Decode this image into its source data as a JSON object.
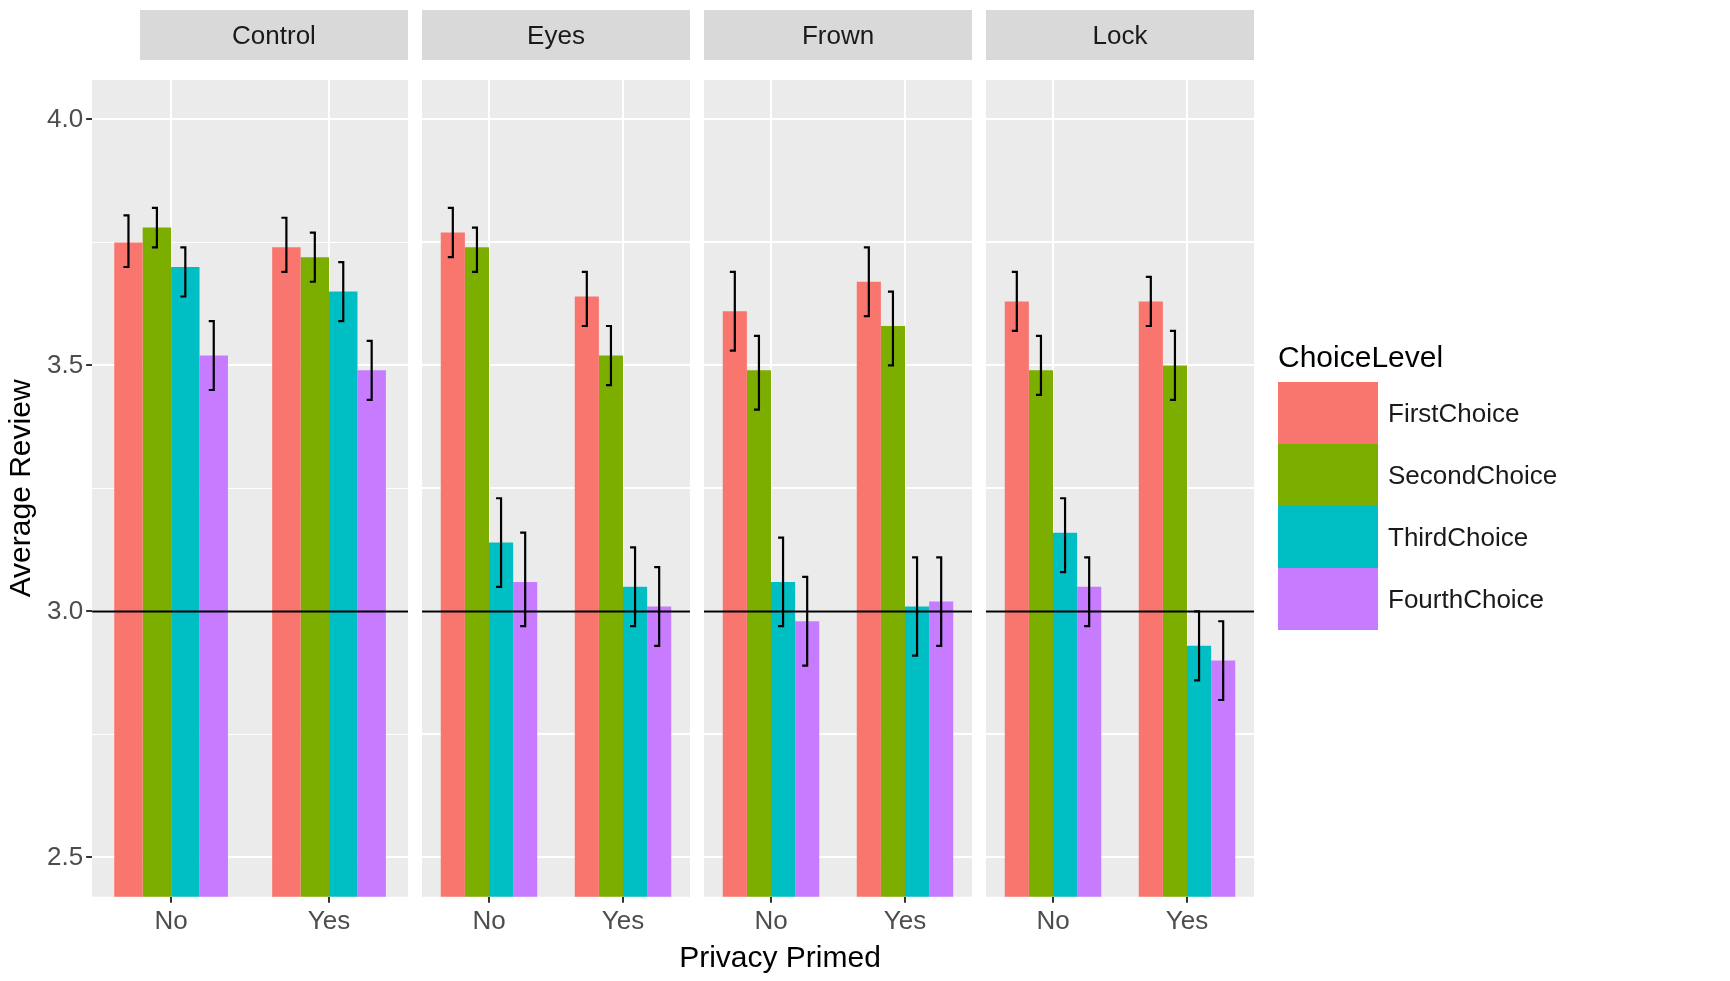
{
  "chart_data": [
    {
      "type": "bar",
      "title": "Control",
      "ylabel": "Average Review",
      "categories": [
        "No",
        "Yes"
      ],
      "ylim": [
        2.42,
        4.08
      ],
      "yticks": [
        {
          "value": 2.5,
          "label": "2.5"
        },
        {
          "value": 2.75,
          "label": null
        },
        {
          "value": 3,
          "label": "3.0"
        },
        {
          "value": 3.25,
          "label": null
        },
        {
          "value": 3.5,
          "label": "3.5"
        },
        {
          "value": 3.75,
          "label": null
        },
        {
          "value": 4,
          "label": "4.0"
        }
      ],
      "grid": true,
      "ref_lines": [
        {
          "axis": "y",
          "value": 3,
          "color": "#000000"
        }
      ],
      "series": [
        {
          "color": "#f8766d",
          "values": [
            3.75,
            3.74
          ],
          "errors": [
            [
              3.7,
              3.805
            ],
            [
              3.69,
              3.8
            ]
          ]
        },
        {
          "color": "#7cae00",
          "values": [
            3.78,
            3.72
          ],
          "errors": [
            [
              3.74,
              3.82
            ],
            [
              3.67,
              3.77
            ]
          ]
        },
        {
          "color": "#00bfc4",
          "values": [
            3.7,
            3.65
          ],
          "errors": [
            [
              3.64,
              3.74
            ],
            [
              3.59,
              3.71
            ]
          ]
        },
        {
          "color": "#c77cff",
          "values": [
            3.52,
            3.49
          ],
          "errors": [
            [
              3.45,
              3.59
            ],
            [
              3.43,
              3.55
            ]
          ]
        }
      ]
    },
    {
      "type": "bar",
      "title": "Eyes",
      "xlabel": "Privacy Primed",
      "categories": [
        "No",
        "Yes"
      ],
      "ylim": [
        2.42,
        4.08
      ],
      "yticks": [
        {
          "value": 2.5,
          "label": null
        },
        {
          "value": 2.75,
          "label": null
        },
        {
          "value": 3,
          "label": null
        },
        {
          "value": 3.25,
          "label": null
        },
        {
          "value": 3.5,
          "label": null
        },
        {
          "value": 3.75,
          "label": null
        },
        {
          "value": 4,
          "label": null
        }
      ],
      "tick_labels": "x",
      "grid": true,
      "ref_lines": [
        {
          "axis": "y",
          "value": 3,
          "color": "#000000"
        }
      ],
      "series": [
        {
          "color": "#f8766d",
          "values": [
            3.77,
            3.64
          ],
          "errors": [
            [
              3.72,
              3.82
            ],
            [
              3.58,
              3.69
            ]
          ]
        },
        {
          "color": "#7cae00",
          "values": [
            3.74,
            3.52
          ],
          "errors": [
            [
              3.69,
              3.78
            ],
            [
              3.46,
              3.58
            ]
          ]
        },
        {
          "color": "#00bfc4",
          "values": [
            3.14,
            3.05
          ],
          "errors": [
            [
              3.05,
              3.23
            ],
            [
              2.97,
              3.13
            ]
          ]
        },
        {
          "color": "#c77cff",
          "values": [
            3.06,
            3.01
          ],
          "errors": [
            [
              2.97,
              3.16
            ],
            [
              2.93,
              3.09
            ]
          ]
        }
      ]
    },
    {
      "type": "bar",
      "title": "Frown",
      "categories": [
        "No",
        "Yes"
      ],
      "ylim": [
        2.42,
        4.08
      ],
      "yticks": [
        {
          "value": 2.5,
          "label": null
        },
        {
          "value": 2.75,
          "label": null
        },
        {
          "value": 3,
          "label": null
        },
        {
          "value": 3.25,
          "label": null
        },
        {
          "value": 3.5,
          "label": null
        },
        {
          "value": 3.75,
          "label": null
        },
        {
          "value": 4,
          "label": null
        }
      ],
      "tick_labels": "x",
      "grid": true,
      "ref_lines": [
        {
          "axis": "y",
          "value": 3,
          "color": "#000000"
        }
      ],
      "series": [
        {
          "color": "#f8766d",
          "values": [
            3.61,
            3.67
          ],
          "errors": [
            [
              3.53,
              3.69
            ],
            [
              3.6,
              3.74
            ]
          ]
        },
        {
          "color": "#7cae00",
          "values": [
            3.49,
            3.58
          ],
          "errors": [
            [
              3.41,
              3.56
            ],
            [
              3.5,
              3.65
            ]
          ]
        },
        {
          "color": "#00bfc4",
          "values": [
            3.06,
            3.01
          ],
          "errors": [
            [
              2.97,
              3.15
            ],
            [
              2.91,
              3.11
            ]
          ]
        },
        {
          "color": "#c77cff",
          "values": [
            2.98,
            3.02
          ],
          "errors": [
            [
              2.89,
              3.07
            ],
            [
              2.93,
              3.11
            ]
          ]
        }
      ]
    },
    {
      "type": "bar",
      "title": "Lock",
      "legend_title": "ChoiceLevel",
      "legend": "right",
      "categories": [
        "No",
        "Yes"
      ],
      "ylim": [
        2.42,
        4.08
      ],
      "yticks": [
        {
          "value": 2.5,
          "label": null
        },
        {
          "value": 2.75,
          "label": null
        },
        {
          "value": 3,
          "label": null
        },
        {
          "value": 3.25,
          "label": null
        },
        {
          "value": 3.5,
          "label": null
        },
        {
          "value": 3.75,
          "label": null
        },
        {
          "value": 4,
          "label": null
        }
      ],
      "tick_labels": "x",
      "grid": true,
      "ref_lines": [
        {
          "axis": "y",
          "value": 3,
          "color": "#000000"
        }
      ],
      "series": [
        {
          "name": "FirstChoice",
          "color": "#f8766d",
          "values": [
            3.63,
            3.63
          ],
          "errors": [
            [
              3.57,
              3.69
            ],
            [
              3.58,
              3.68
            ]
          ]
        },
        {
          "name": "SecondChoice",
          "color": "#7cae00",
          "values": [
            3.49,
            3.5
          ],
          "errors": [
            [
              3.44,
              3.56
            ],
            [
              3.43,
              3.57
            ]
          ]
        },
        {
          "name": "ThirdChoice",
          "color": "#00bfc4",
          "values": [
            3.16,
            2.93
          ],
          "errors": [
            [
              3.08,
              3.23
            ],
            [
              2.86,
              3.0
            ]
          ]
        },
        {
          "name": "FourthChoice",
          "color": "#c77cff",
          "values": [
            3.05,
            2.9
          ],
          "errors": [
            [
              2.97,
              3.11
            ],
            [
              2.82,
              2.98
            ]
          ]
        }
      ]
    }
  ]
}
